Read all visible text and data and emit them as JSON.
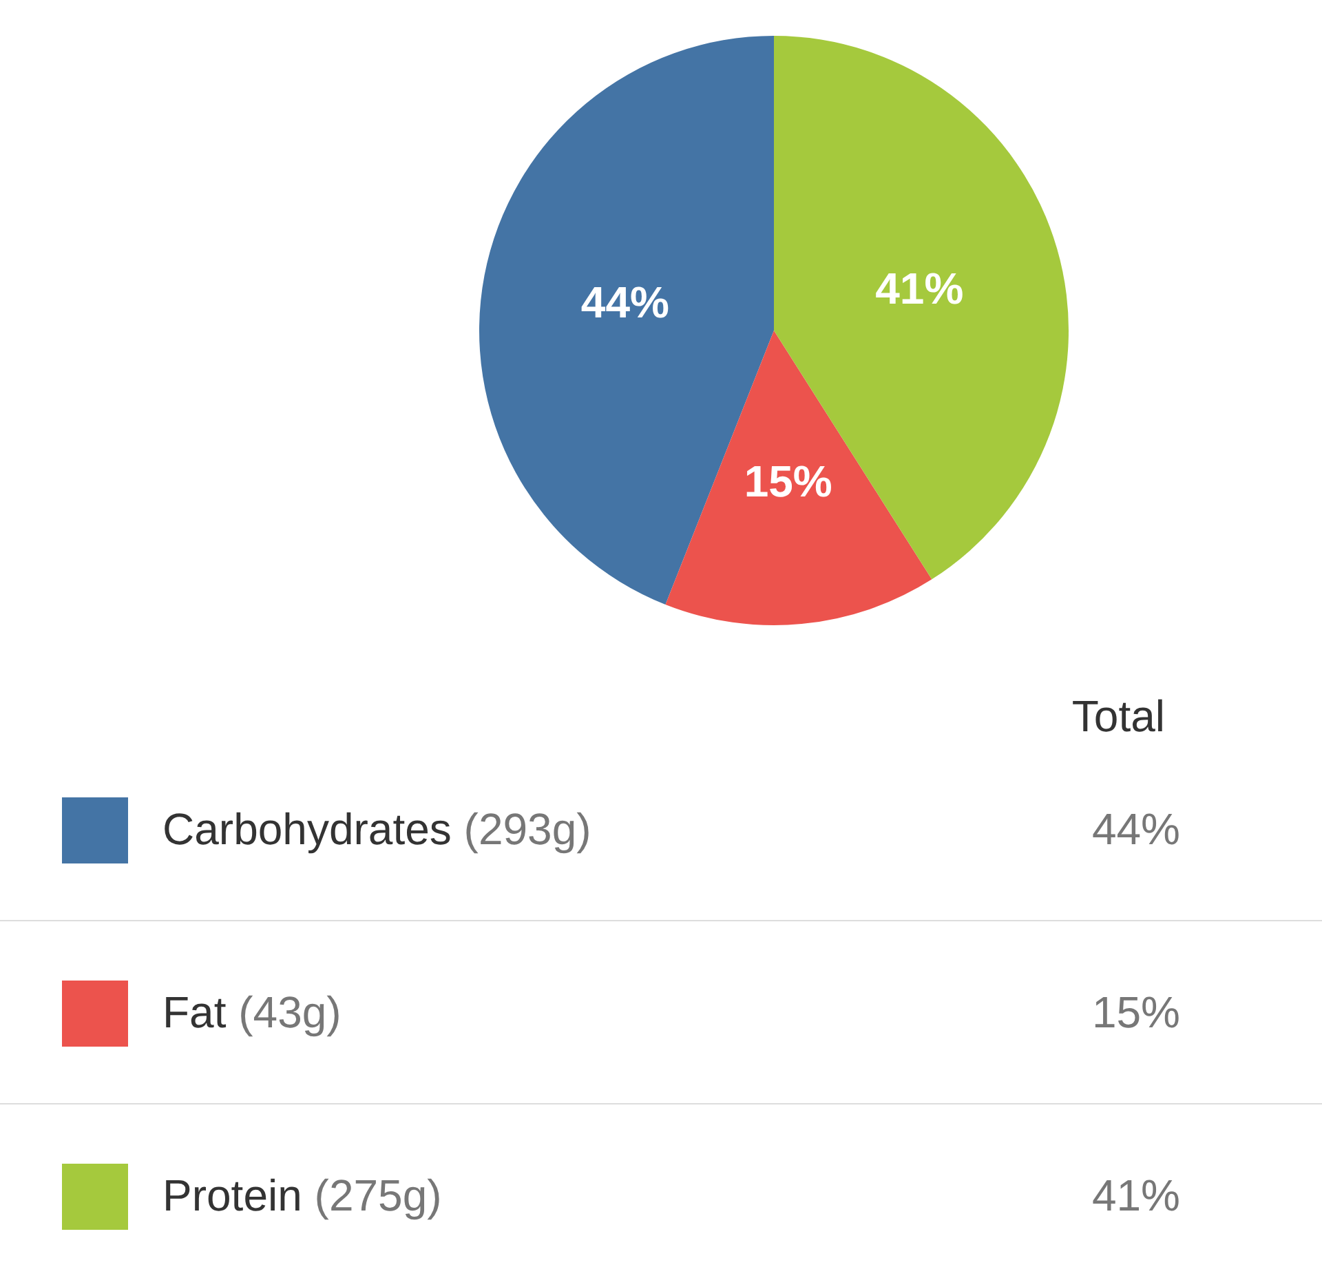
{
  "chart_data": {
    "type": "pie",
    "categories": [
      "Carbohydrates (293g)",
      "Fat (43g)",
      "Protein (275g)"
    ],
    "values": [
      44,
      15,
      41
    ],
    "colors": [
      "#4474a5",
      "#ec534d",
      "#a5c93d"
    ],
    "value_labels": [
      "44%",
      "15%",
      "41%"
    ],
    "legend_title": "Total",
    "legend": "bottom"
  }
}
